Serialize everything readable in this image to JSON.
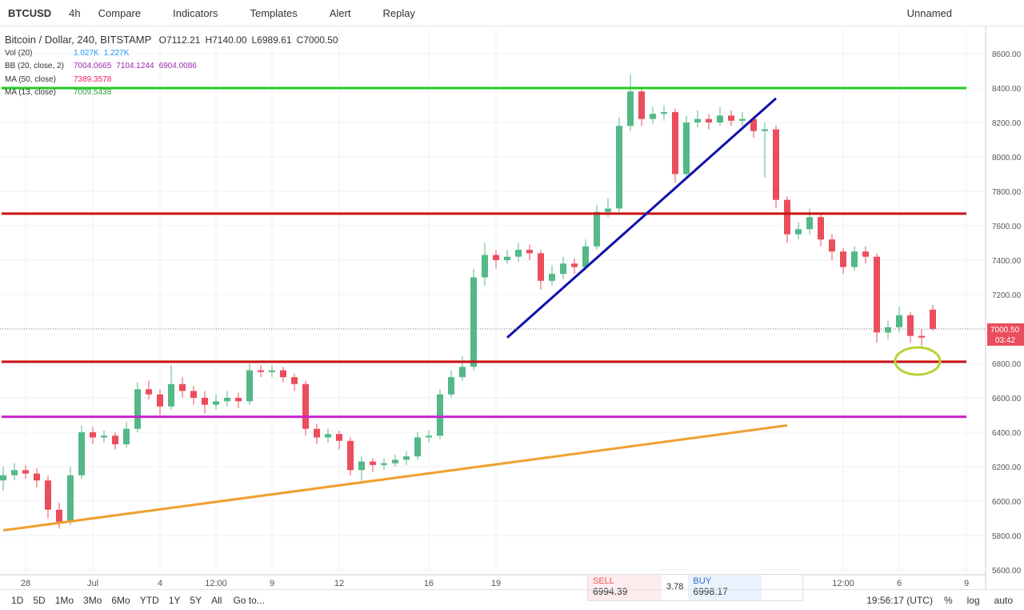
{
  "toolbar": {
    "symbol": "BTCUSD",
    "interval": "4h",
    "buttons": [
      "Compare",
      "Indicators",
      "Templates",
      "Alert",
      "Replay"
    ],
    "layout_name": "Unnamed"
  },
  "legend": {
    "symbol_label": "Bitcoin / Dollar, 240, BITSTAMP",
    "ohlc": [
      "O7112.21",
      "H7140.00",
      "L6989.61",
      "C7000.50"
    ],
    "indicators": [
      {
        "name": "Vol (20)",
        "values": [
          "1.027K",
          "1.227K"
        ],
        "color": "#2196f3"
      },
      {
        "name": "BB (20, close, 2)",
        "values": [
          "7004.0665",
          "7104.1244",
          "6904.0086"
        ],
        "color": "#9c27b0"
      },
      {
        "name": "MA (50, close)",
        "values": [
          "7389.3578"
        ],
        "color": "#e91e63"
      },
      {
        "name": "MA (13, close)",
        "values": [
          "7009.5438"
        ],
        "color": "#2ea043"
      }
    ]
  },
  "chart_data": {
    "type": "candlestick",
    "categories": [
      null,
      null,
      "28",
      null,
      null,
      null,
      null,
      null,
      "Jul",
      null,
      null,
      null,
      null,
      null,
      "4",
      null,
      null,
      null,
      null,
      "12:00",
      null,
      null,
      null,
      null,
      "9",
      null,
      null,
      null,
      null,
      null,
      "12",
      null,
      null,
      null,
      null,
      null,
      null,
      null,
      "16",
      null,
      null,
      null,
      null,
      null,
      "19",
      null,
      null,
      null,
      null,
      null,
      null,
      null,
      null,
      null,
      null,
      null,
      null,
      null,
      null,
      null,
      null,
      null,
      null,
      null,
      null,
      null,
      null,
      null,
      null,
      null,
      null,
      null,
      null,
      null,
      null,
      "12:00",
      null,
      null,
      null,
      null,
      "6",
      null,
      null,
      null,
      null,
      null,
      "9"
    ],
    "open": [
      6120,
      6150,
      6180,
      6160,
      6120,
      5950,
      5880,
      6150,
      6400,
      6370,
      6380,
      6330,
      6420,
      6650,
      6620,
      6550,
      6680,
      6640,
      6600,
      6560,
      6580,
      6600,
      6580,
      6760,
      6750,
      6760,
      6720,
      6680,
      6420,
      6370,
      6390,
      6350,
      6180,
      6230,
      6210,
      6220,
      6240,
      6260,
      6370,
      6380,
      6620,
      6720,
      6780,
      7300,
      7430,
      7400,
      7420,
      7460,
      7440,
      7280,
      7320,
      7380,
      7360,
      7480,
      7680,
      7700,
      8180,
      8380,
      8220,
      8250,
      8260,
      7900,
      8200,
      8220,
      8200,
      8240,
      8210,
      8220,
      8150,
      8160,
      7750,
      7550,
      7580,
      7650,
      7520,
      7450,
      7360,
      7450,
      7420,
      6980,
      7010,
      7080,
      6960,
      7112.21,
      null,
      null,
      null
    ],
    "high": [
      6200,
      6220,
      6210,
      6190,
      6150,
      5990,
      6200,
      6440,
      6430,
      6410,
      6400,
      6460,
      6690,
      6700,
      6650,
      6790,
      6720,
      6670,
      6640,
      6620,
      6640,
      6630,
      6800,
      6790,
      6790,
      6780,
      6740,
      6700,
      6450,
      6420,
      6410,
      6370,
      6260,
      6250,
      6250,
      6270,
      6290,
      6400,
      6410,
      6650,
      6760,
      6840,
      7350,
      7500,
      7460,
      7460,
      7500,
      7490,
      7460,
      7370,
      7420,
      7410,
      7520,
      7720,
      7760,
      8230,
      8480,
      8400,
      8290,
      8300,
      8280,
      8240,
      8270,
      8250,
      8290,
      8270,
      8260,
      8240,
      8200,
      8180,
      7770,
      7620,
      7700,
      7670,
      7550,
      7470,
      7480,
      7480,
      7440,
      7050,
      7130,
      7100,
      7000,
      7140,
      null,
      null,
      null
    ],
    "low": [
      6060,
      6120,
      6130,
      6080,
      5900,
      5840,
      5860,
      6130,
      6330,
      6340,
      6300,
      6310,
      6400,
      6590,
      6500,
      6530,
      6600,
      6560,
      6510,
      6530,
      6550,
      6540,
      6560,
      6720,
      6720,
      6690,
      6640,
      6380,
      6330,
      6340,
      6300,
      6150,
      6100,
      6170,
      6180,
      6200,
      6210,
      6240,
      6340,
      6360,
      6600,
      6700,
      6760,
      7250,
      7350,
      7380,
      7390,
      7400,
      7230,
      7250,
      7290,
      7320,
      7340,
      7460,
      7650,
      7680,
      8150,
      8180,
      8190,
      8210,
      7850,
      7870,
      8170,
      8160,
      8180,
      8180,
      8180,
      8110,
      7880,
      7700,
      7500,
      7520,
      7550,
      7480,
      7400,
      7320,
      7340,
      7380,
      6920,
      6940,
      6980,
      6920,
      6900,
      6989.61,
      null,
      null,
      null
    ],
    "close": [
      6150,
      6180,
      6160,
      6120,
      5950,
      5880,
      6150,
      6400,
      6370,
      6380,
      6330,
      6420,
      6650,
      6620,
      6550,
      6680,
      6640,
      6600,
      6560,
      6580,
      6600,
      6580,
      6760,
      6750,
      6760,
      6720,
      6680,
      6420,
      6370,
      6390,
      6350,
      6180,
      6230,
      6210,
      6220,
      6240,
      6260,
      6370,
      6380,
      6620,
      6720,
      6780,
      7300,
      7430,
      7400,
      7420,
      7460,
      7440,
      7280,
      7320,
      7380,
      7360,
      7480,
      7680,
      7700,
      8180,
      8380,
      8220,
      8250,
      8260,
      7900,
      8200,
      8220,
      8200,
      8240,
      8210,
      8220,
      8150,
      8160,
      7750,
      7550,
      7580,
      7650,
      7520,
      7450,
      7360,
      7450,
      7420,
      6980,
      7010,
      7080,
      6960,
      6950,
      7000.5,
      null,
      null,
      null
    ],
    "up_color": "#53b987",
    "down_color": "#eb4d5c",
    "ylim": [
      5572,
      8744
    ],
    "yticks": [
      {
        "value": 5600,
        "label": "5600.00"
      },
      {
        "value": 5800,
        "label": "5800.00"
      },
      {
        "value": 6000,
        "label": "6000.00"
      },
      {
        "value": 6200,
        "label": "6200.00"
      },
      {
        "value": 6400,
        "label": "6400.00"
      },
      {
        "value": 6600,
        "label": "6600.00"
      },
      {
        "value": 6800,
        "label": "6800.00"
      },
      {
        "value": 7000,
        "label": "7000.00"
      },
      {
        "value": 7200,
        "label": "7200.00"
      },
      {
        "value": 7400,
        "label": "7400.00"
      },
      {
        "value": 7600,
        "label": "7600.00"
      },
      {
        "value": 7800,
        "label": "7800.00"
      },
      {
        "value": 8000,
        "label": "8000.00"
      },
      {
        "value": 8200,
        "label": "8200.00"
      },
      {
        "value": 8400,
        "label": "8400.00"
      },
      {
        "value": 8600,
        "label": "8600.00"
      }
    ],
    "grid": true,
    "last_price": {
      "value": 7000.5,
      "label": "7000.50",
      "countdown": "03:42"
    },
    "horizontal_lines": [
      {
        "price": 8400,
        "color": "#22cc22"
      },
      {
        "price": 7670,
        "color": "#cc1111"
      },
      {
        "price": 6810,
        "color": "#cc1111"
      },
      {
        "price": 6490,
        "color": "#cc22cc"
      }
    ],
    "trend_lines": [
      {
        "x": [
          0,
          70
        ],
        "price": [
          5830,
          6440
        ],
        "color": "#f0a030"
      },
      {
        "x": [
          45,
          69
        ],
        "price": [
          6950,
          8340
        ],
        "color": "#1010aa"
      }
    ]
  },
  "trade_panel": {
    "sell_label": "SELL",
    "sell": "6994.39",
    "spread": "3.78",
    "buy_label": "BUY",
    "buy": "6998.17"
  },
  "bottom_bar": {
    "ranges": [
      "1D",
      "5D",
      "1Mo",
      "3Mo",
      "6Mo",
      "YTD",
      "1Y",
      "5Y",
      "All"
    ],
    "goto": "Go to...",
    "clock": "19:56:17 (UTC)",
    "options": [
      "%",
      "log",
      "auto"
    ]
  }
}
